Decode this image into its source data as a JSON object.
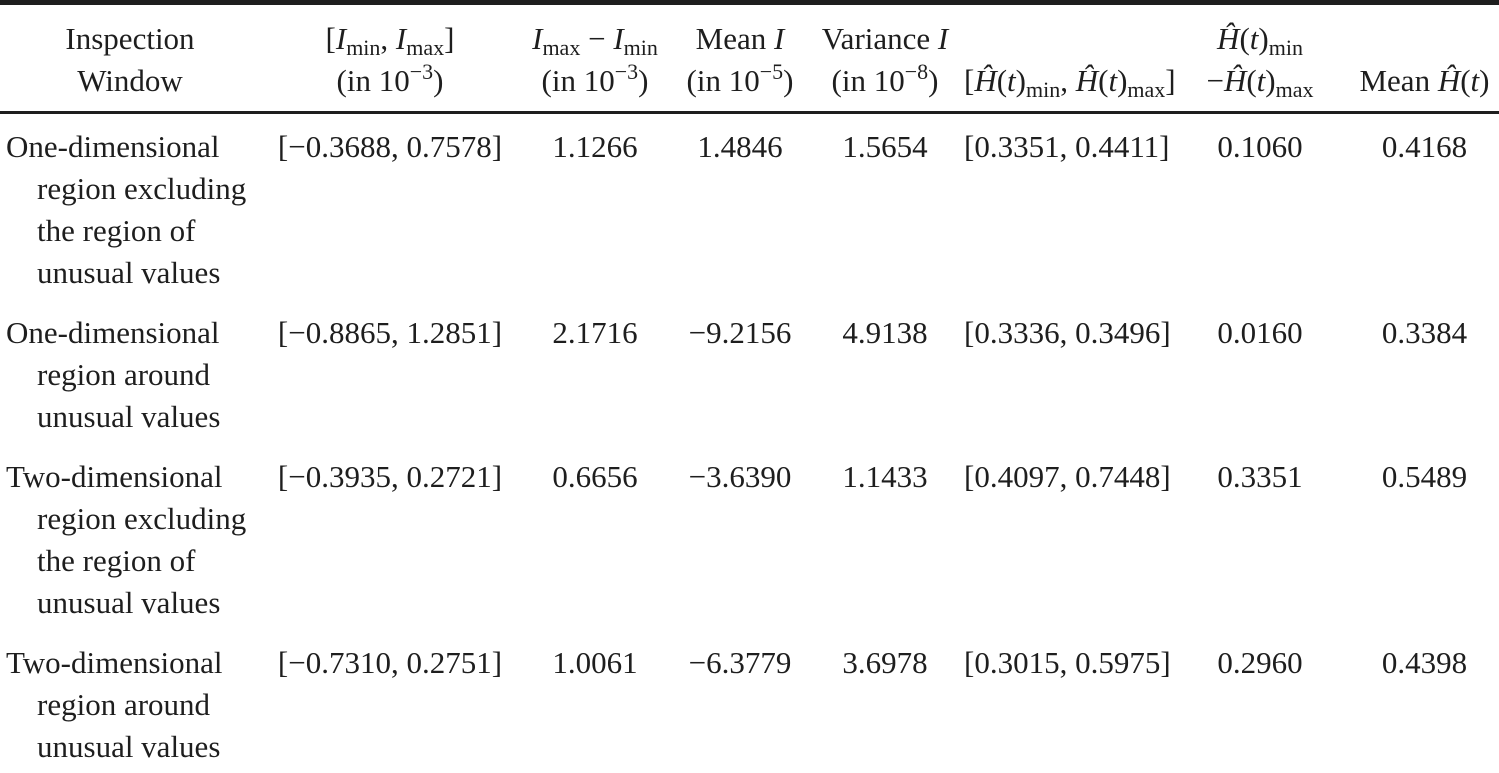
{
  "colors": {
    "background": "#ffffff",
    "text": "#1e1e1e",
    "rule": "#1e1e1e"
  },
  "table": {
    "columns": [
      {
        "id": "inspection-window",
        "header_line1": "Inspection",
        "header_line2": "Window"
      },
      {
        "id": "i-range",
        "header_line1": "[$I$_{min}, $I$_{max}]",
        "header_line2": "(in 10^{−3})"
      },
      {
        "id": "i-span",
        "header_line1": "$I$_{max} − $I$_{min}",
        "header_line2": "(in 10^{−3})"
      },
      {
        "id": "i-mean",
        "header_line1": "Mean $I$",
        "header_line2": "(in 10^{−5})"
      },
      {
        "id": "i-variance",
        "header_line1": "Variance $I$",
        "header_line2": "(in 10^{−8})"
      },
      {
        "id": "h-range",
        "header_line1": "",
        "header_line2": "[$Ĥ$($t$)_{min}, $Ĥ$($t$)_{max}]"
      },
      {
        "id": "h-span",
        "header_line1": "$Ĥ$($t$)_{min}",
        "header_line2": "−$Ĥ$($t$)_{max}"
      },
      {
        "id": "h-mean",
        "header_line1": "",
        "header_line2": "Mean $Ĥ$($t$)"
      }
    ],
    "rows": [
      {
        "label_lines": [
          "One-dimensional",
          "region excluding",
          "the region of",
          "unusual values"
        ],
        "values": [
          "[−0.3688, 0.7578]",
          "1.1266",
          "1.4846",
          "1.5654",
          "[0.3351, 0.4411]",
          "0.1060",
          "0.4168"
        ]
      },
      {
        "label_lines": [
          "One-dimensional",
          "region around",
          "unusual values"
        ],
        "values": [
          "[−0.8865, 1.2851]",
          "2.1716",
          "−9.2156",
          "4.9138",
          "[0.3336, 0.3496]",
          "0.0160",
          "0.3384"
        ]
      },
      {
        "label_lines": [
          "Two-dimensional",
          "region excluding",
          "the region of",
          "unusual values"
        ],
        "values": [
          "[−0.3935, 0.2721]",
          "0.6656",
          "−3.6390",
          "1.1433",
          "[0.4097, 0.7448]",
          "0.3351",
          "0.5489"
        ]
      },
      {
        "label_lines": [
          "Two-dimensional",
          "region around",
          "unusual values"
        ],
        "values": [
          "[−0.7310, 0.2751]",
          "1.0061",
          "−6.3779",
          "3.6978",
          "[0.3015, 0.5975]",
          "0.2960",
          "0.4398"
        ]
      }
    ]
  }
}
